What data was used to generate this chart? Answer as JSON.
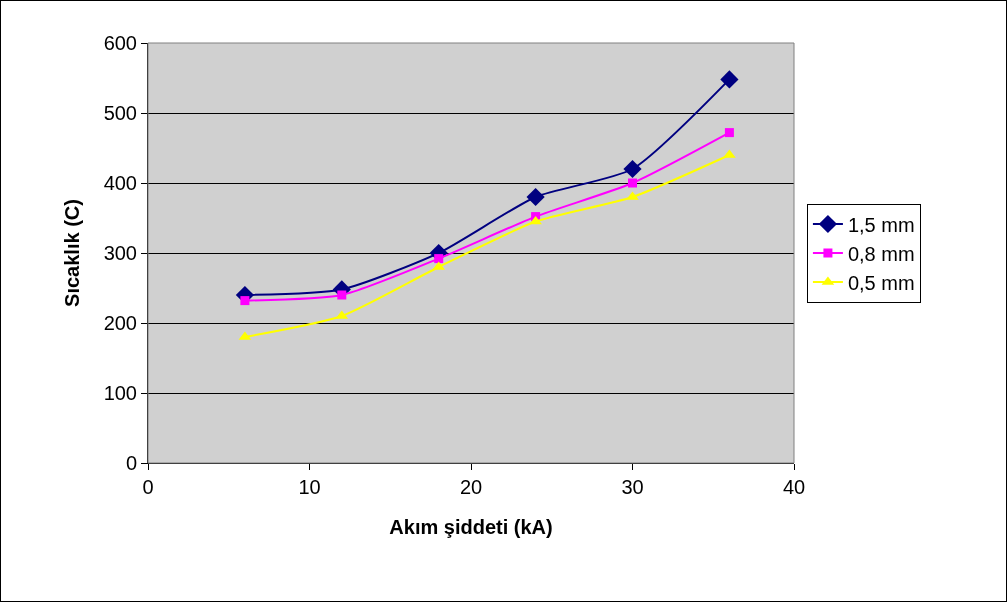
{
  "chart_data": {
    "type": "line",
    "xlabel": "Akım şiddeti (kA)",
    "ylabel": "Sıcaklık (C)",
    "x": [
      6,
      12,
      18,
      24,
      30,
      36
    ],
    "series": [
      {
        "name": "1,5 mm",
        "color": "#000080",
        "marker": "diamond",
        "values": [
          240,
          248,
          300,
          380,
          420,
          548
        ]
      },
      {
        "name": "0,8 mm",
        "color": "#ff00ff",
        "marker": "square",
        "values": [
          232,
          240,
          292,
          352,
          400,
          472
        ]
      },
      {
        "name": "0,5 mm",
        "color": "#ffff00",
        "marker": "triangle",
        "values": [
          180,
          210,
          280,
          345,
          380,
          440
        ]
      }
    ],
    "xlim": [
      0,
      40
    ],
    "xticks": [
      0,
      10,
      20,
      30,
      40
    ],
    "ylim": [
      0,
      600
    ],
    "yticks": [
      0,
      100,
      200,
      300,
      400,
      500,
      600
    ],
    "grid": "y",
    "legend": "right",
    "line_style": "solid"
  }
}
